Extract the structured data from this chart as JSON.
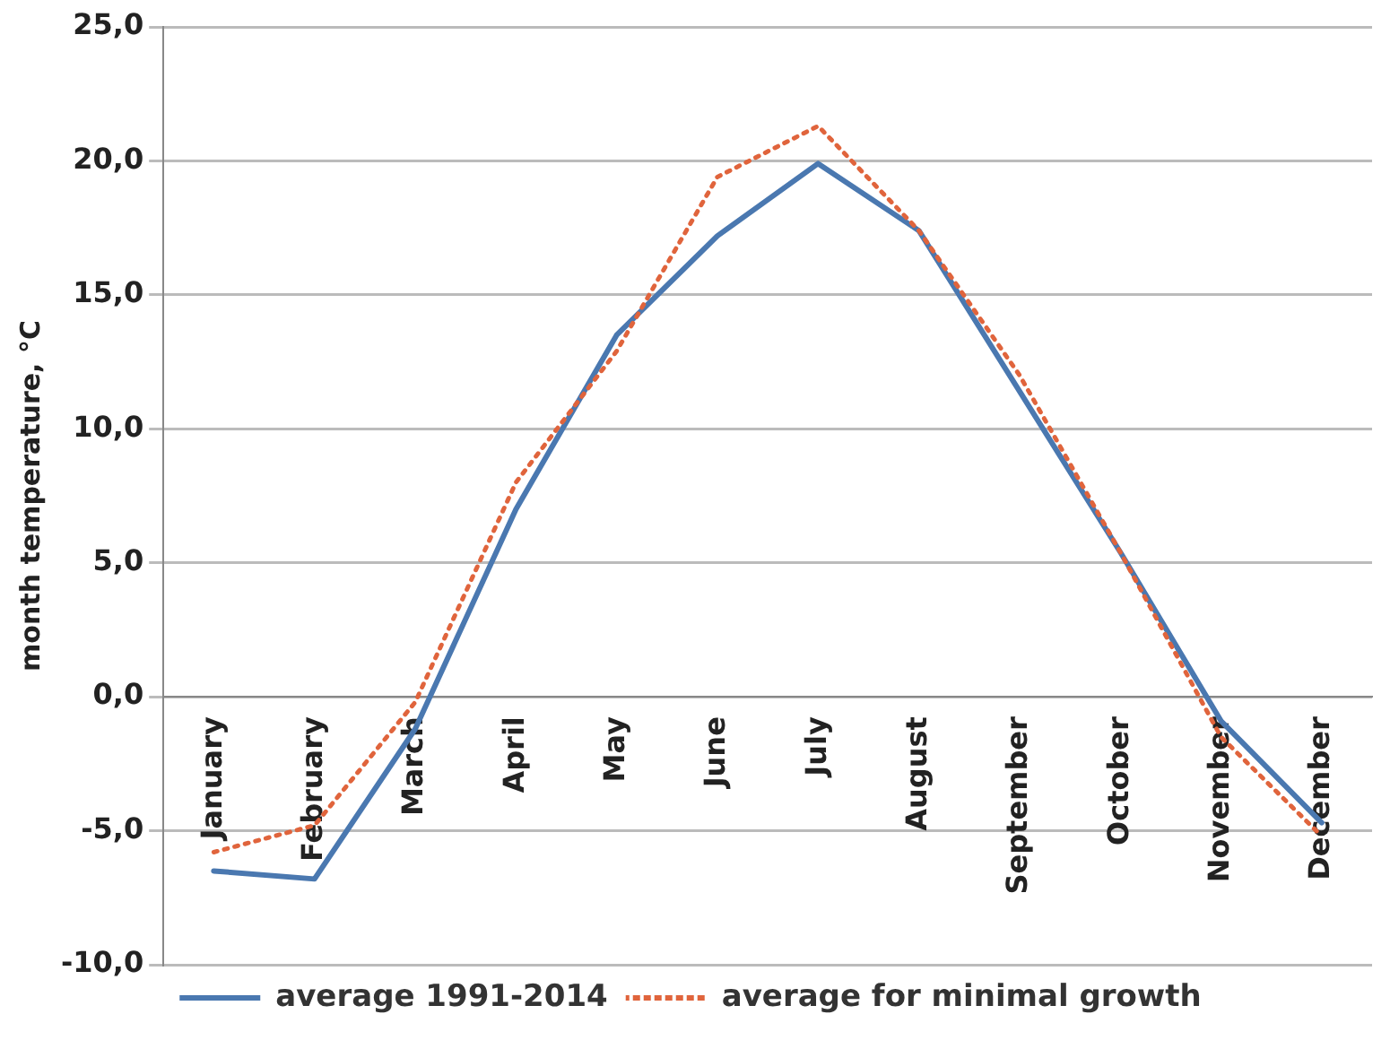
{
  "chart_data": {
    "type": "line",
    "ylabel": "month temperature, °C",
    "categories": [
      "January",
      "February",
      "March",
      "April",
      "May",
      "June",
      "July",
      "August",
      "September",
      "October",
      "November",
      "December"
    ],
    "series": [
      {
        "name": "average 1991-2014",
        "color": "#4a78b0",
        "line_style": "solid",
        "values": [
          -6.5,
          -6.8,
          -1.2,
          7.0,
          13.5,
          17.2,
          19.9,
          17.4,
          11.4,
          5.4,
          -0.9,
          -4.7
        ]
      },
      {
        "name": "average for minimal growth",
        "color": "#e0643c",
        "line_style": "dotted",
        "values": [
          -5.8,
          -4.8,
          -0.2,
          8.0,
          12.9,
          19.4,
          21.3,
          17.4,
          12.0,
          5.4,
          -1.5,
          -5.2
        ]
      }
    ],
    "ylim": [
      -10,
      25
    ],
    "yticks": [
      {
        "value": -10,
        "label": "-10,0"
      },
      {
        "value": -5,
        "label": "-5,0"
      },
      {
        "value": 0,
        "label": "0,0"
      },
      {
        "value": 5,
        "label": "5,0"
      },
      {
        "value": 10,
        "label": "10,0"
      },
      {
        "value": 15,
        "label": "15,0"
      },
      {
        "value": 20,
        "label": "20,0"
      },
      {
        "value": 25,
        "label": "25,0"
      }
    ],
    "grid": "y",
    "legend": "bottom",
    "marker": "none"
  }
}
